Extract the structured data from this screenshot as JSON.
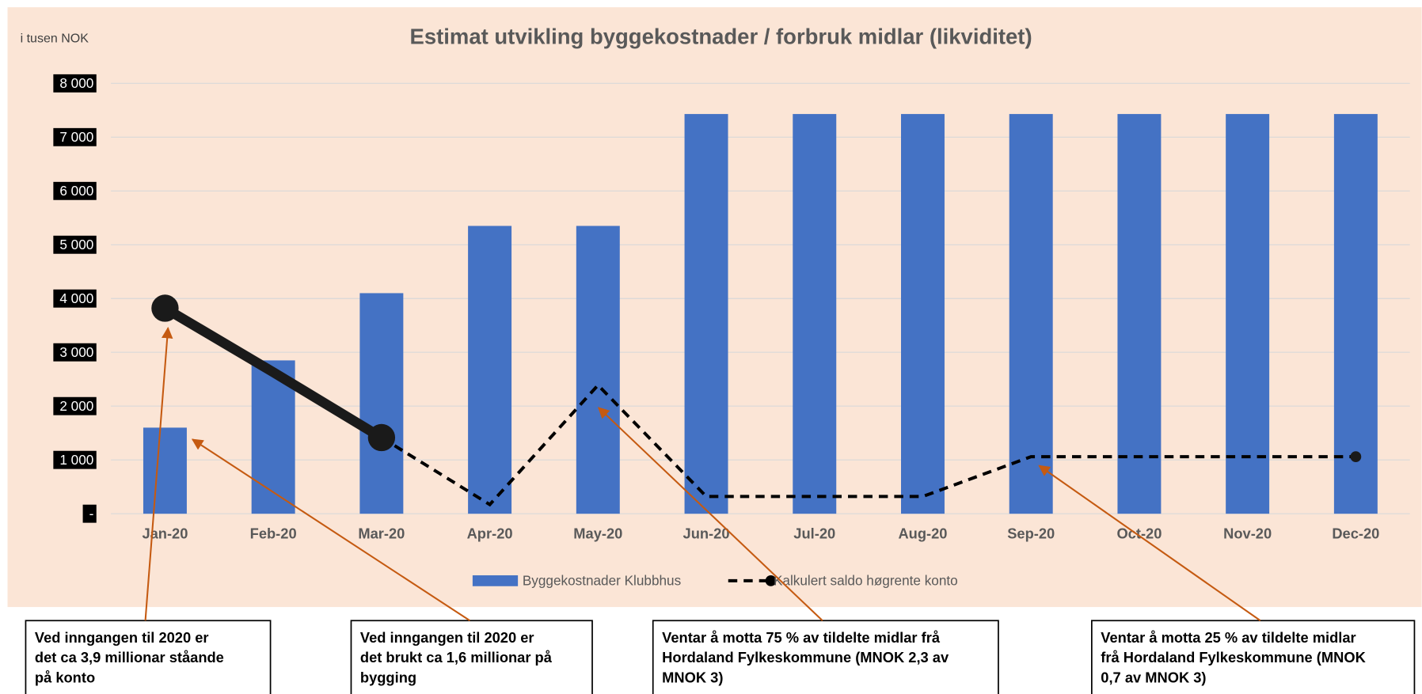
{
  "chart_data": {
    "type": "bar-line",
    "title": "Estimat utvikling byggekostnader / forbruk midlar (likviditet)",
    "y_label": "i tusen NOK",
    "categories": [
      "Jan-20",
      "Feb-20",
      "Mar-20",
      "Apr-20",
      "May-20",
      "Jun-20",
      "Jul-20",
      "Aug-20",
      "Sep-20",
      "Oct-20",
      "Nov-20",
      "Dec-20"
    ],
    "series": [
      {
        "name": "Byggekostnader Klubbhus",
        "color": "#4472c4",
        "type": "bar",
        "values": [
          1600,
          2850,
          4100,
          5350,
          5350,
          7430,
          7430,
          7430,
          7430,
          7430,
          7430,
          7430
        ]
      },
      {
        "name": "Kalkulert saldo høgrente konto",
        "color": "#000000",
        "type": "line",
        "values": [
          3820,
          2630,
          1415,
          170,
          2390,
          320,
          320,
          320,
          1060,
          1060,
          1060,
          1060
        ]
      }
    ],
    "ylim": [
      0,
      8000
    ],
    "yticks": [
      {
        "value": 0,
        "label": "-"
      },
      {
        "value": 1000,
        "label": "1 000"
      },
      {
        "value": 2000,
        "label": "2 000"
      },
      {
        "value": 3000,
        "label": "3 000"
      },
      {
        "value": 4000,
        "label": "4 000"
      },
      {
        "value": 5000,
        "label": "5 000"
      },
      {
        "value": 6000,
        "label": "6 000"
      },
      {
        "value": 7000,
        "label": "7 000"
      },
      {
        "value": 8000,
        "label": "8 000"
      }
    ],
    "grid": true,
    "legend": "bottom",
    "annotations": [
      {
        "lines": [
          "Ved inngangen til 2020 er",
          "det ca 3,9 millionar ståande",
          "på konto"
        ]
      },
      {
        "lines": [
          "Ved inngangen til 2020 er",
          "det brukt ca 1,6 millionar på",
          "bygging"
        ]
      },
      {
        "lines": [
          "Ventar å motta 75 % av tildelte midlar frå",
          "Hordaland Fylkeskommune (MNOK 2,3 av",
          "MNOK 3)"
        ]
      },
      {
        "lines": [
          "Ventar å motta 25 % av tildelte midlar",
          "frå Hordaland Fylkeskommune (MNOK",
          "0,7 av MNOK 3)"
        ]
      }
    ]
  }
}
